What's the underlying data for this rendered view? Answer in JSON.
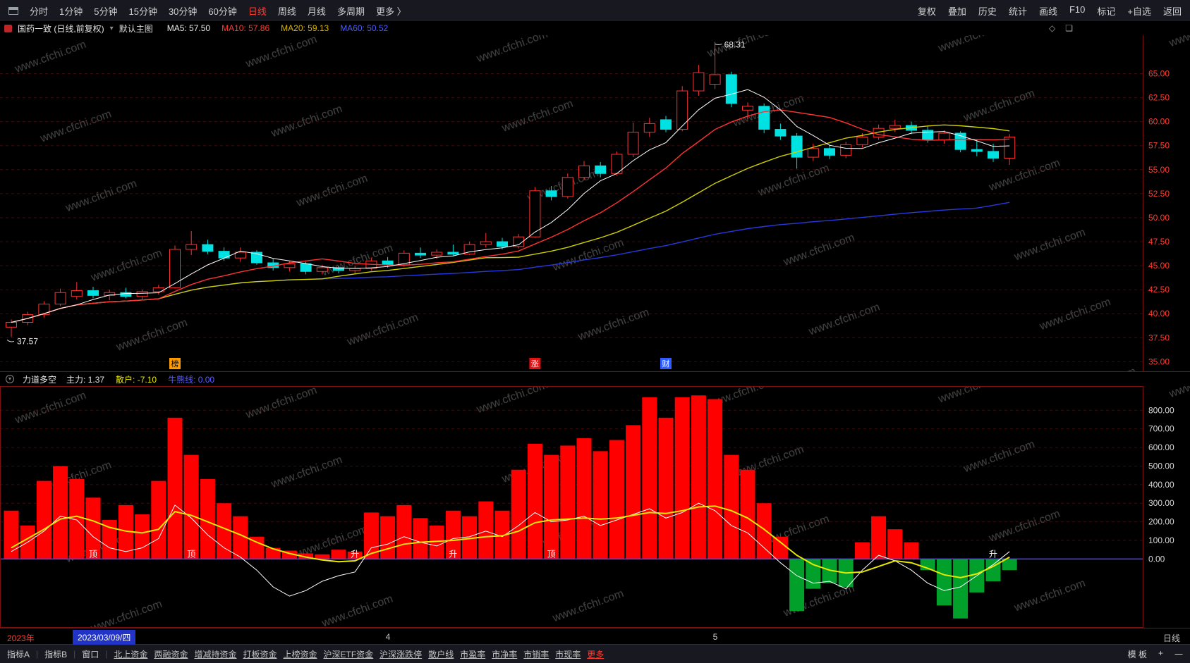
{
  "watermark": "www.cfchi.com",
  "topbar": {
    "periods": [
      {
        "label": "分时",
        "active": false
      },
      {
        "label": "1分钟",
        "active": false
      },
      {
        "label": "5分钟",
        "active": false
      },
      {
        "label": "15分钟",
        "active": false
      },
      {
        "label": "30分钟",
        "active": false
      },
      {
        "label": "60分钟",
        "active": false
      },
      {
        "label": "日线",
        "active": true
      },
      {
        "label": "周线",
        "active": false
      },
      {
        "label": "月线",
        "active": false
      },
      {
        "label": "多周期",
        "active": false
      }
    ],
    "more_label": "更多 〉",
    "tools": [
      "复权",
      "叠加",
      "历史",
      "统计",
      "画线",
      "F10",
      "标记",
      "+自选",
      "返回"
    ]
  },
  "info_bar": {
    "stock_title": "国药一致 (日线,前复权)",
    "main_chart_selector": "默认主图",
    "ma_values": [
      {
        "label": "MA5: 57.50",
        "color": "#e8e8e8"
      },
      {
        "label": "MA10: 57.86",
        "color": "#ff3b30"
      },
      {
        "label": "MA20: 59.13",
        "color": "#d8b400"
      },
      {
        "label": "MA60: 50.52",
        "color": "#4a5cff"
      }
    ]
  },
  "indicator_header": {
    "name": "力道多空",
    "values": [
      {
        "label": "主力: 1.37",
        "color": "#e8e8e8"
      },
      {
        "label": "散户: -7.10",
        "color": "#e8e800"
      },
      {
        "label": "牛熊线: 0.00",
        "color": "#5a5aff"
      }
    ]
  },
  "date_axis": {
    "year_label": "2023年",
    "selected_date": "2023/03/09/四",
    "month_markers": [
      {
        "label": "4",
        "index": 23
      },
      {
        "label": "5",
        "index": 43
      }
    ],
    "right_label": "日线"
  },
  "bottom_bar": {
    "tabs": [
      "指标A",
      "指标B",
      "窗口"
    ],
    "links": [
      "北上资金",
      "两融资金",
      "增减持资金",
      "打板资金",
      "上榜资金",
      "沪深ETF资金",
      "沪深涨跌停",
      "散户线",
      "市盈率",
      "市净率",
      "市销率",
      "市现率"
    ],
    "more_label": "更多",
    "right": [
      "模 板",
      "+",
      "一"
    ]
  },
  "chart_data": [
    {
      "type": "candlestick",
      "title": "国药一致 (日线,前复权)",
      "ylim": [
        34.0,
        69.0
      ],
      "yticks": [
        65.0,
        62.5,
        60.0,
        57.5,
        55.0,
        52.5,
        50.0,
        47.5,
        45.0,
        42.5,
        40.0,
        37.5,
        35.0
      ],
      "axis_color": "#ff3b30",
      "grid_color": "#3a0c0c",
      "up_color": "#ff3232",
      "down_color": "#00e1e1",
      "ma_colors": {
        "ma5": "#ffffff",
        "ma10": "#ff3232",
        "ma20": "#cfcf00",
        "ma60": "#2739dd"
      },
      "candles": [
        [
          38.6,
          39.4,
          37.57,
          39.1
        ],
        [
          39.1,
          40.2,
          38.8,
          39.9
        ],
        [
          39.9,
          41.3,
          39.6,
          41.0
        ],
        [
          41.0,
          42.6,
          40.8,
          42.2
        ],
        [
          41.8,
          43.3,
          41.5,
          42.4
        ],
        [
          42.4,
          42.8,
          41.6,
          41.9
        ],
        [
          41.9,
          42.5,
          41.4,
          42.2
        ],
        [
          42.2,
          42.7,
          41.6,
          41.8
        ],
        [
          41.8,
          42.5,
          41.5,
          42.3
        ],
        [
          42.3,
          43.0,
          42.0,
          42.7
        ],
        [
          42.7,
          47.1,
          42.6,
          46.7
        ],
        [
          46.7,
          48.6,
          46.1,
          47.2
        ],
        [
          47.2,
          47.7,
          46.2,
          46.5
        ],
        [
          46.5,
          46.9,
          45.5,
          45.8
        ],
        [
          45.8,
          46.9,
          45.4,
          46.4
        ],
        [
          46.4,
          46.6,
          45.1,
          45.3
        ],
        [
          45.3,
          45.7,
          44.5,
          44.8
        ],
        [
          44.8,
          45.5,
          44.4,
          45.2
        ],
        [
          45.2,
          45.4,
          44.1,
          44.4
        ],
        [
          44.4,
          45.1,
          44.1,
          44.8
        ],
        [
          44.8,
          45.0,
          44.2,
          44.5
        ],
        [
          44.5,
          45.0,
          44.1,
          44.7
        ],
        [
          44.7,
          45.8,
          44.5,
          45.5
        ],
        [
          45.5,
          45.9,
          44.8,
          45.1
        ],
        [
          45.1,
          46.6,
          44.9,
          46.3
        ],
        [
          46.3,
          46.9,
          45.8,
          46.1
        ],
        [
          46.1,
          46.7,
          45.7,
          46.4
        ],
        [
          46.4,
          47.2,
          46.0,
          46.2
        ],
        [
          46.2,
          47.5,
          46.1,
          47.2
        ],
        [
          47.2,
          48.4,
          46.9,
          47.5
        ],
        [
          47.5,
          47.9,
          46.7,
          47.0
        ],
        [
          47.0,
          48.3,
          46.8,
          48.0
        ],
        [
          48.0,
          53.2,
          47.9,
          52.8
        ],
        [
          52.8,
          53.3,
          51.8,
          52.2
        ],
        [
          52.2,
          54.6,
          52.0,
          54.2
        ],
        [
          54.2,
          55.9,
          53.9,
          55.4
        ],
        [
          55.4,
          55.8,
          54.2,
          54.6
        ],
        [
          54.6,
          56.9,
          54.4,
          56.6
        ],
        [
          56.6,
          59.9,
          56.3,
          58.9
        ],
        [
          58.9,
          60.4,
          58.4,
          59.8
        ],
        [
          60.2,
          60.6,
          58.9,
          59.2
        ],
        [
          59.2,
          63.7,
          59.0,
          63.2
        ],
        [
          63.2,
          65.9,
          62.7,
          65.1
        ],
        [
          63.9,
          68.31,
          63.4,
          64.9
        ],
        [
          64.9,
          65.2,
          61.5,
          61.9
        ],
        [
          61.2,
          62.0,
          60.3,
          61.6
        ],
        [
          61.6,
          61.9,
          58.8,
          59.2
        ],
        [
          59.2,
          59.8,
          58.1,
          58.5
        ],
        [
          58.5,
          58.8,
          55.1,
          56.3
        ],
        [
          56.3,
          57.7,
          55.9,
          57.2
        ],
        [
          57.2,
          57.6,
          56.1,
          56.5
        ],
        [
          56.5,
          57.9,
          56.2,
          57.6
        ],
        [
          57.6,
          58.8,
          57.3,
          58.4
        ],
        [
          58.4,
          59.7,
          58.1,
          59.3
        ],
        [
          59.3,
          60.2,
          58.9,
          59.6
        ],
        [
          59.6,
          60.0,
          58.7,
          59.1
        ],
        [
          59.1,
          59.5,
          57.8,
          58.1
        ],
        [
          58.1,
          59.1,
          57.7,
          58.8
        ],
        [
          58.8,
          59.0,
          56.8,
          57.1
        ],
        [
          57.1,
          58.1,
          56.4,
          56.9
        ],
        [
          56.9,
          57.7,
          55.8,
          56.2
        ],
        [
          56.2,
          58.7,
          55.5,
          58.4
        ]
      ],
      "high_label": {
        "text": "68.31",
        "index": 43
      },
      "low_label": {
        "text": "37.57",
        "index": 0
      },
      "event_markers": [
        {
          "text": "榜",
          "index": 10,
          "bg": "#ff9a00",
          "fg": "#000000"
        },
        {
          "text": "涨",
          "index": 32,
          "bg": "#e01212",
          "fg": "#ffffff"
        },
        {
          "text": "财",
          "index": 40,
          "bg": "#2e5cff",
          "fg": "#ffffff"
        }
      ]
    },
    {
      "type": "bar",
      "name": "力道多空",
      "ylim": [
        -370,
        930
      ],
      "yticks": [
        800,
        700,
        600,
        500,
        400,
        300,
        200,
        100,
        0
      ],
      "axis_color": "#d8d8d8",
      "grid_color": "#3a0c0c",
      "border_color": "#7a1010",
      "bar_pos_color": "#ff0000",
      "bar_neg_color": "#00a02a",
      "zero_line_color": "#5544ff",
      "bars": [
        260,
        180,
        420,
        500,
        430,
        330,
        210,
        290,
        240,
        420,
        760,
        560,
        430,
        300,
        230,
        120,
        60,
        45,
        30,
        25,
        50,
        40,
        250,
        230,
        290,
        220,
        180,
        260,
        230,
        310,
        260,
        480,
        620,
        560,
        610,
        650,
        580,
        640,
        720,
        870,
        760,
        870,
        880,
        860,
        560,
        480,
        300,
        120,
        -280,
        -160,
        -130,
        -150,
        90,
        230,
        160,
        90,
        -60,
        -250,
        -320,
        -180,
        -120,
        -60
      ],
      "yellow_line": {
        "color": "#e8e800",
        "values": [
          60,
          110,
          160,
          215,
          230,
          205,
          170,
          150,
          140,
          160,
          255,
          235,
          200,
          165,
          130,
          90,
          55,
          30,
          10,
          -5,
          -15,
          -10,
          30,
          55,
          80,
          90,
          95,
          100,
          110,
          120,
          125,
          150,
          195,
          210,
          215,
          220,
          215,
          220,
          235,
          250,
          245,
          260,
          280,
          285,
          260,
          220,
          160,
          90,
          20,
          -30,
          -60,
          -75,
          -70,
          -40,
          -10,
          -20,
          -50,
          -85,
          -100,
          -80,
          -40,
          10
        ]
      },
      "white_line": {
        "color": "#ffffff",
        "values": [
          40,
          90,
          150,
          230,
          210,
          120,
          60,
          40,
          60,
          110,
          290,
          220,
          130,
          60,
          10,
          -60,
          -150,
          -200,
          -170,
          -120,
          -90,
          -70,
          60,
          80,
          120,
          90,
          70,
          110,
          120,
          150,
          120,
          180,
          250,
          200,
          210,
          230,
          180,
          210,
          240,
          270,
          220,
          250,
          300,
          260,
          180,
          140,
          60,
          -20,
          -90,
          -130,
          -120,
          -160,
          -60,
          20,
          -10,
          -60,
          -130,
          -170,
          -150,
          -90,
          -30,
          40
        ]
      },
      "labels": [
        {
          "text": "顶",
          "index": 5
        },
        {
          "text": "顶",
          "index": 11
        },
        {
          "text": "升",
          "index": 21
        },
        {
          "text": "升",
          "index": 27
        },
        {
          "text": "顶",
          "index": 33
        },
        {
          "text": "升",
          "index": 60
        }
      ]
    }
  ]
}
